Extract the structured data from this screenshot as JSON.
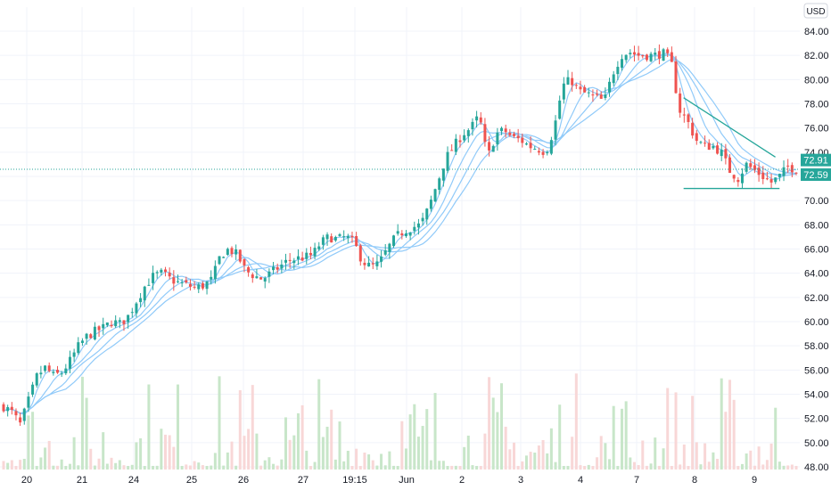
{
  "chart_data": {
    "type": "candlestick",
    "currency": "USD",
    "ylim": [
      48,
      85
    ],
    "y_ticks": [
      "84.00",
      "82.00",
      "80.00",
      "78.00",
      "76.00",
      "74.00",
      "72.00",
      "70.00",
      "68.00",
      "66.00",
      "64.00",
      "62.00",
      "60.00",
      "58.00",
      "56.00",
      "54.00",
      "52.00",
      "50.00",
      "48.00"
    ],
    "x_ticks": [
      "20",
      "21",
      "24",
      "25",
      "26",
      "27",
      "19:15",
      "Jun",
      "2",
      "3",
      "4",
      "7",
      "8",
      "9"
    ],
    "price_tags": [
      {
        "label": "72.91",
        "value": 72.91,
        "color": "#26a69a"
      },
      {
        "label": "72.59",
        "value": 72.59,
        "color": "#26a69a"
      }
    ],
    "last_price_line": 72.59,
    "colors": {
      "up": "#26a69a",
      "down": "#ef5350",
      "ma": "#90caf9",
      "trendline": "#26a69a",
      "grid": "#f0f3fa"
    },
    "grid": true,
    "price_path": [
      [
        0,
        53.0
      ],
      [
        2,
        52.5
      ],
      [
        4,
        51.5
      ],
      [
        6,
        53.5
      ],
      [
        8,
        55.5
      ],
      [
        10,
        56.2
      ],
      [
        12,
        55.5
      ],
      [
        14,
        55.8
      ],
      [
        16,
        56.8
      ],
      [
        18,
        58.0
      ],
      [
        20,
        58.8
      ],
      [
        22,
        59.2
      ],
      [
        24,
        59.5
      ],
      [
        26,
        60.0
      ],
      [
        28,
        59.8
      ],
      [
        30,
        60.5
      ],
      [
        32,
        61.8
      ],
      [
        34,
        63.0
      ],
      [
        36,
        63.8
      ],
      [
        38,
        64.0
      ],
      [
        40,
        63.5
      ],
      [
        42,
        63.2
      ],
      [
        44,
        63.0
      ],
      [
        46,
        62.8
      ],
      [
        48,
        63.0
      ],
      [
        50,
        63.5
      ],
      [
        52,
        65.5
      ],
      [
        54,
        66.0
      ],
      [
        56,
        65.5
      ],
      [
        58,
        64.2
      ],
      [
        60,
        63.8
      ],
      [
        62,
        63.5
      ],
      [
        64,
        64.0
      ],
      [
        66,
        64.5
      ],
      [
        68,
        65.0
      ],
      [
        70,
        65.2
      ],
      [
        72,
        65.3
      ],
      [
        74,
        65.5
      ],
      [
        76,
        66.5
      ],
      [
        78,
        67.0
      ],
      [
        80,
        66.8
      ],
      [
        82,
        67.0
      ],
      [
        84,
        66.5
      ],
      [
        86,
        65.0
      ],
      [
        88,
        64.5
      ],
      [
        90,
        64.8
      ],
      [
        92,
        66.0
      ],
      [
        94,
        67.0
      ],
      [
        96,
        67.5
      ],
      [
        98,
        67.8
      ],
      [
        100,
        68.0
      ],
      [
        102,
        69.5
      ],
      [
        104,
        71.5
      ],
      [
        106,
        73.5
      ],
      [
        108,
        74.5
      ],
      [
        110,
        75.5
      ],
      [
        112,
        76.0
      ],
      [
        114,
        77.0
      ],
      [
        116,
        73.5
      ],
      [
        118,
        75.5
      ],
      [
        120,
        75.8
      ],
      [
        122,
        75.2
      ],
      [
        124,
        75.0
      ],
      [
        126,
        74.5
      ],
      [
        128,
        74.3
      ],
      [
        130,
        74.0
      ],
      [
        132,
        76.0
      ],
      [
        134,
        79.5
      ],
      [
        136,
        80.0
      ],
      [
        138,
        79.0
      ],
      [
        140,
        78.8
      ],
      [
        142,
        78.5
      ],
      [
        144,
        78.2
      ],
      [
        146,
        80.5
      ],
      [
        148,
        82.0
      ],
      [
        150,
        82.3
      ],
      [
        152,
        82.0
      ],
      [
        154,
        82.0
      ],
      [
        156,
        82.0
      ],
      [
        158,
        82.2
      ],
      [
        160,
        81.5
      ],
      [
        162,
        77.5
      ],
      [
        164,
        76.5
      ],
      [
        166,
        75.0
      ],
      [
        168,
        74.5
      ],
      [
        170,
        74.5
      ],
      [
        172,
        74.0
      ],
      [
        174,
        72.5
      ],
      [
        176,
        71.8
      ],
      [
        178,
        73.0
      ],
      [
        180,
        72.5
      ],
      [
        182,
        72.0
      ],
      [
        184,
        71.5
      ],
      [
        186,
        72.0
      ],
      [
        188,
        72.8
      ],
      [
        190,
        72.6
      ]
    ],
    "trendlines": [
      {
        "from": [
          163,
          78.5
        ],
        "to": [
          185,
          73.6
        ]
      },
      {
        "from": [
          163,
          71.0
        ],
        "to": [
          186,
          71.0
        ]
      }
    ]
  }
}
